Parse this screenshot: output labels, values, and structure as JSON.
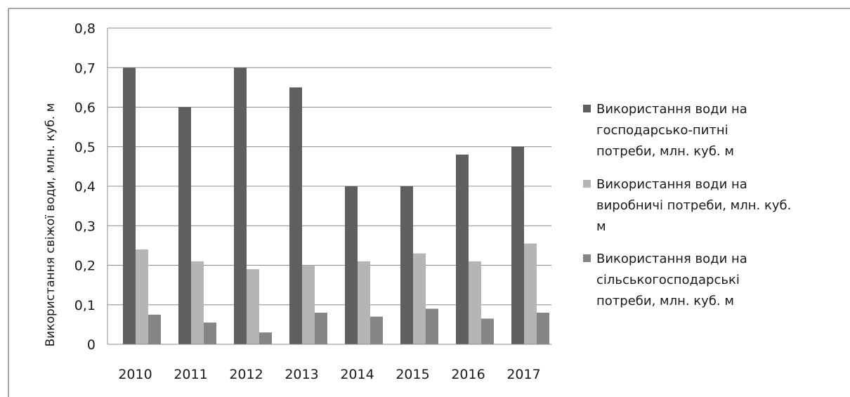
{
  "chart_data": {
    "type": "bar",
    "title": "",
    "xlabel": "",
    "ylabel": "Використання свіжої води, млн. куб. м",
    "categories": [
      "2010",
      "2011",
      "2012",
      "2013",
      "2014",
      "2015",
      "2016",
      "2017"
    ],
    "ylim": [
      0,
      0.8
    ],
    "yticks": [
      "0",
      "0,1",
      "0,2",
      "0,3",
      "0,4",
      "0,5",
      "0,6",
      "0,7",
      "0,8"
    ],
    "grid": true,
    "legend_position": "right",
    "series": [
      {
        "name": "Використання води на господарсько-питні потреби, млн. куб. м",
        "legend_lines": [
          "Використання води на",
          "господарсько-питні",
          "потреби, млн. куб. м"
        ],
        "color": "#5f5f5f",
        "values": [
          0.7,
          0.6,
          0.7,
          0.65,
          0.4,
          0.4,
          0.48,
          0.5
        ]
      },
      {
        "name": "Використання води на виробничі потреби, млн. куб. м",
        "legend_lines": [
          "Використання води на",
          "виробничі потреби, млн. куб.",
          "м"
        ],
        "color": "#b5b5b5",
        "values": [
          0.24,
          0.21,
          0.19,
          0.2,
          0.21,
          0.23,
          0.21,
          0.255
        ]
      },
      {
        "name": "Використання води на сільськогосподарські потреби, млн. куб. м",
        "legend_lines": [
          "Використання води на",
          "сільськогосподарські",
          "потреби, млн. куб. м"
        ],
        "color": "#858585",
        "values": [
          0.075,
          0.055,
          0.03,
          0.08,
          0.07,
          0.09,
          0.065,
          0.08
        ]
      }
    ]
  }
}
